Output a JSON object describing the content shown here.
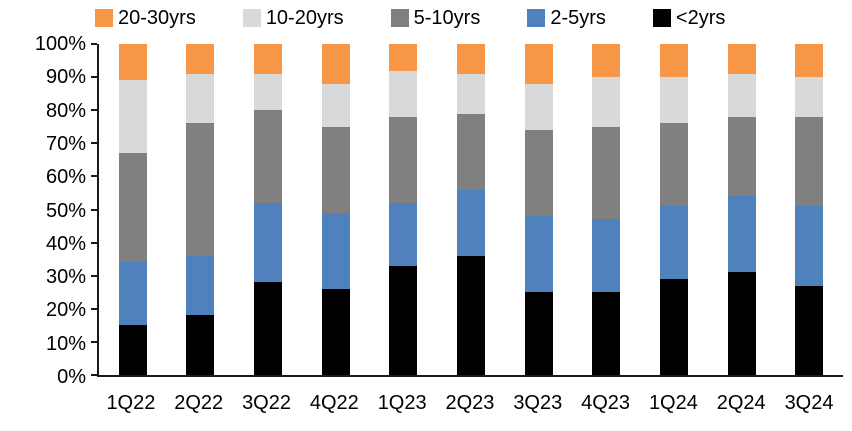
{
  "chart_data": {
    "type": "bar",
    "subtype": "stacked-100-percent",
    "title": "",
    "xlabel": "",
    "ylabel": "",
    "grid": false,
    "legend_position": "top",
    "categories": [
      "1Q22",
      "2Q22",
      "3Q22",
      "4Q22",
      "1Q23",
      "2Q23",
      "3Q23",
      "4Q23",
      "1Q24",
      "2Q24",
      "3Q24"
    ],
    "series": [
      {
        "name": "<2yrs",
        "color": "#000000",
        "values": [
          15,
          18,
          28,
          26,
          33,
          36,
          25,
          25,
          29,
          31,
          27
        ]
      },
      {
        "name": "2-5yrs",
        "color": "#4F81BD",
        "values": [
          19,
          18,
          24,
          23,
          19,
          20,
          23,
          22,
          22,
          23,
          24
        ]
      },
      {
        "name": "5-10yrs",
        "color": "#808080",
        "values": [
          33,
          40,
          28,
          26,
          26,
          23,
          26,
          28,
          25,
          24,
          27
        ]
      },
      {
        "name": "10-20yrs",
        "color": "#D9D9D9",
        "values": [
          22,
          15,
          11,
          13,
          14,
          12,
          14,
          15,
          14,
          13,
          12
        ]
      },
      {
        "name": "20-30yrs",
        "color": "#F79646",
        "values": [
          11,
          9,
          9,
          12,
          8,
          9,
          12,
          10,
          10,
          9,
          10
        ]
      }
    ],
    "legend_order": [
      "20-30yrs",
      "10-20yrs",
      "5-10yrs",
      "2-5yrs",
      "<2yrs"
    ],
    "y_axis": {
      "min": 0,
      "max": 100,
      "tick_step": 10,
      "unit": "%",
      "tick_labels": [
        "0%",
        "10%",
        "20%",
        "30%",
        "40%",
        "50%",
        "60%",
        "70%",
        "80%",
        "90%",
        "100%"
      ]
    }
  },
  "colors": {
    "background": "#FFFFFF",
    "axis": "#1a1a1a",
    "text": "#000000"
  }
}
